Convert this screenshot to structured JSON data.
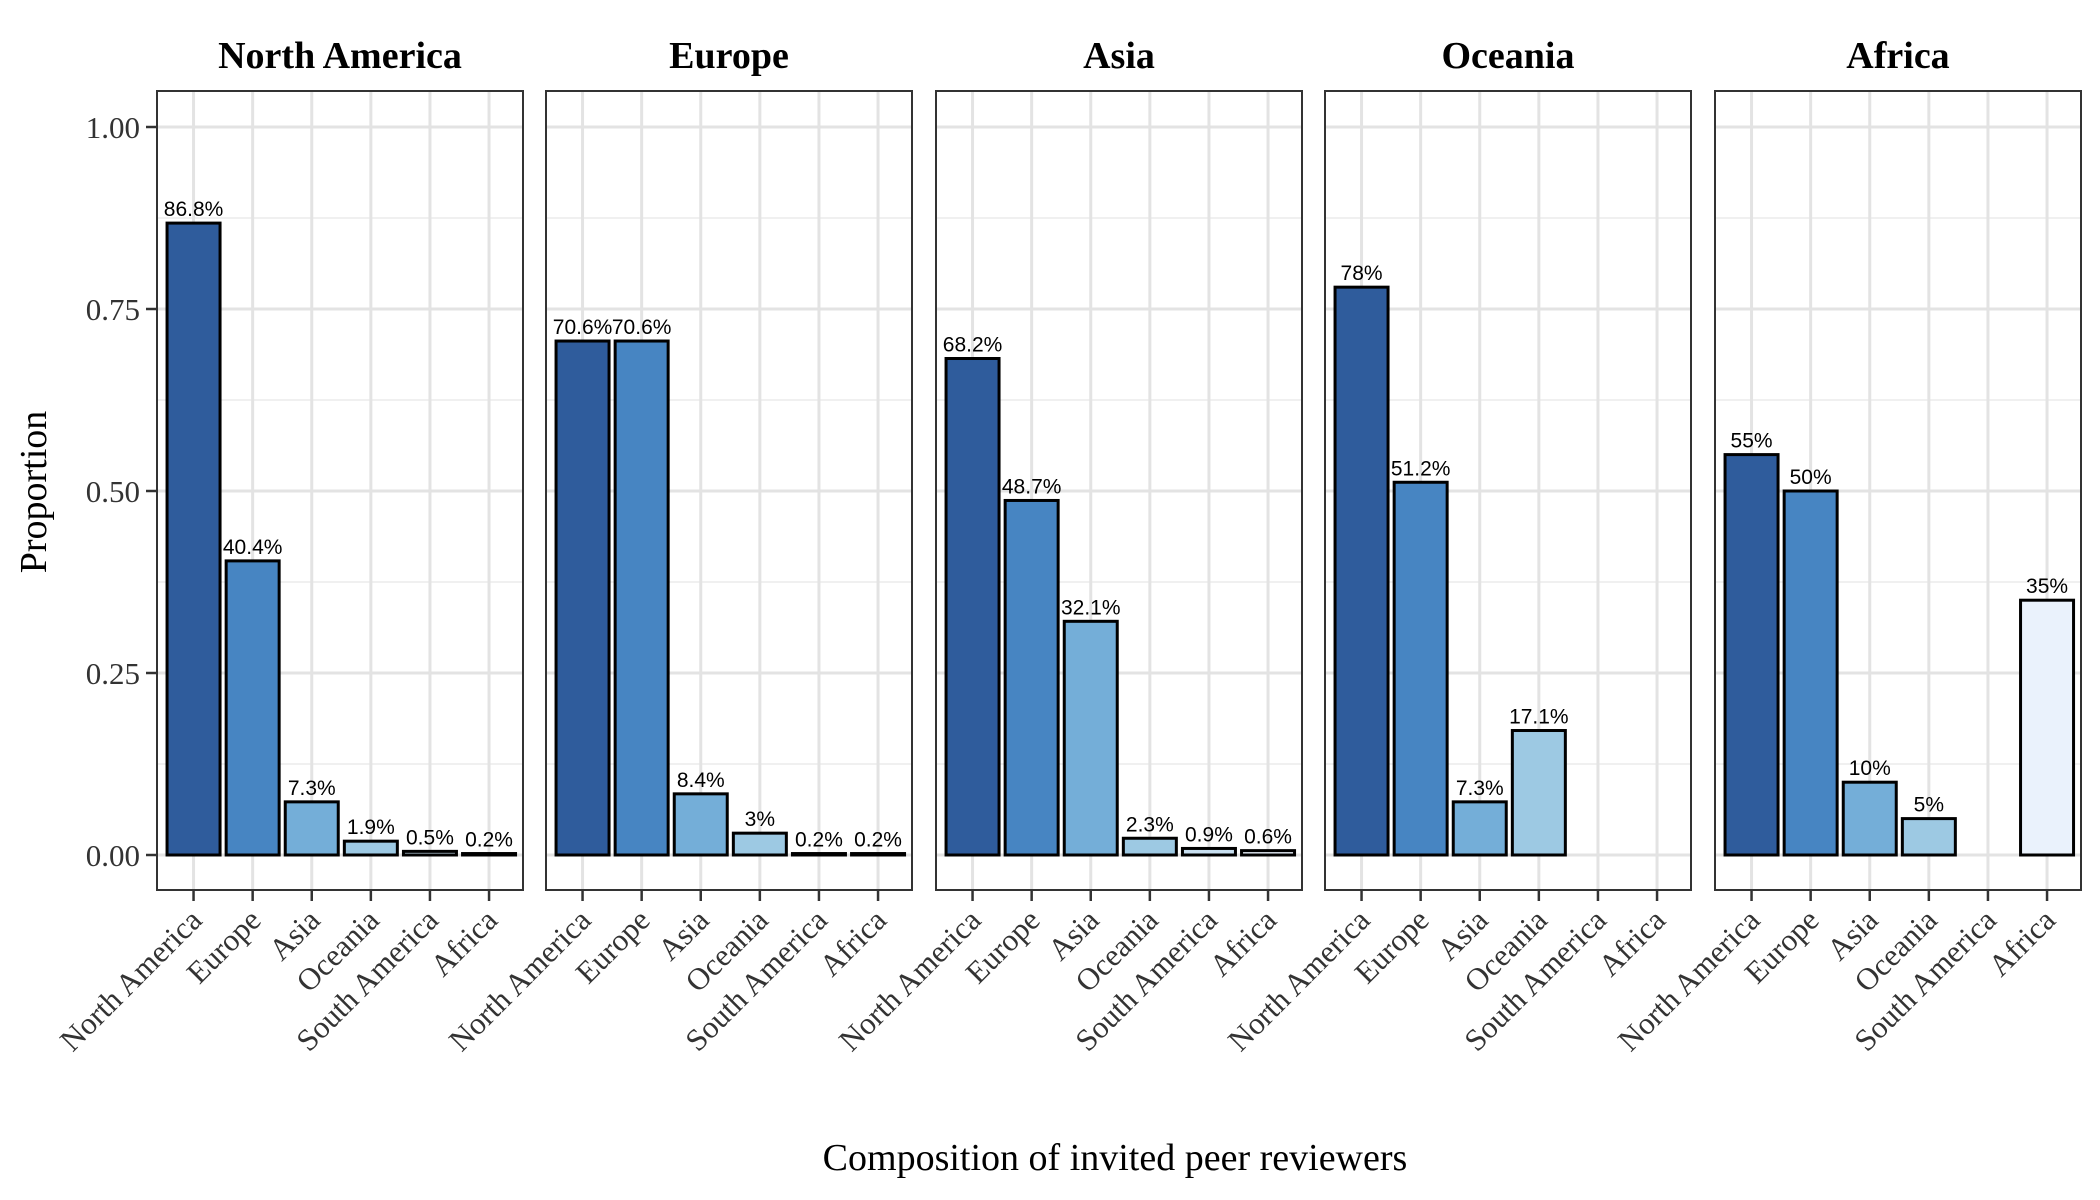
{
  "chart_data": {
    "type": "bar",
    "ylabel": "Proportion",
    "xlabel": "Composition of invited peer reviewers",
    "ylim": [
      -0.045,
      1.05
    ],
    "yticks": [
      0,
      0.25,
      0.5,
      0.75,
      1.0
    ],
    "ytick_labels": [
      "0.00",
      "0.25",
      "0.50",
      "0.75",
      "1.00"
    ],
    "grid": true,
    "categories": [
      "North America",
      "Europe",
      "Asia",
      "Oceania",
      "South America",
      "Africa"
    ],
    "category_colors": [
      "#2f5c9c",
      "#4785c2",
      "#74aed8",
      "#9dc9e3",
      "#c8dff0",
      "#eaf2fc"
    ],
    "panels": [
      {
        "title": "North America",
        "values": [
          0.868,
          0.404,
          0.073,
          0.019,
          0.005,
          0.002
        ],
        "labels": [
          "86.8%",
          "40.4%",
          "7.3%",
          "1.9%",
          "0.5%",
          "0.2%"
        ]
      },
      {
        "title": "Europe",
        "values": [
          0.706,
          0.706,
          0.084,
          0.03,
          0.002,
          0.002
        ],
        "labels": [
          "70.6%",
          "70.6%",
          "8.4%",
          "3%",
          "0.2%",
          "0.2%"
        ]
      },
      {
        "title": "Asia",
        "values": [
          0.682,
          0.487,
          0.321,
          0.023,
          0.009,
          0.006
        ],
        "labels": [
          "68.2%",
          "48.7%",
          "32.1%",
          "2.3%",
          "0.9%",
          "0.6%"
        ]
      },
      {
        "title": "Oceania",
        "values": [
          0.78,
          0.512,
          0.073,
          0.171,
          null,
          null
        ],
        "labels": [
          "78%",
          "51.2%",
          "7.3%",
          "17.1%",
          null,
          null
        ]
      },
      {
        "title": "Africa",
        "values": [
          0.55,
          0.5,
          0.1,
          0.05,
          null,
          0.35
        ],
        "labels": [
          "55%",
          "50%",
          "10%",
          "5%",
          null,
          "35%"
        ]
      }
    ]
  }
}
